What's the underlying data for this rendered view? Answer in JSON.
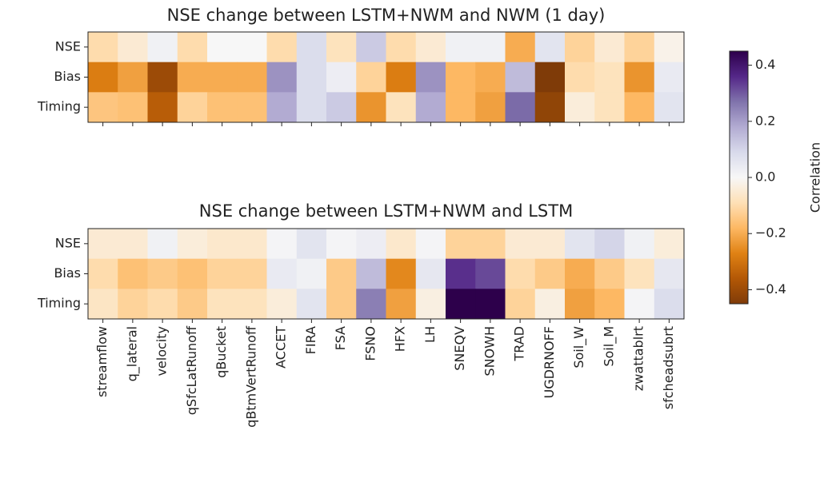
{
  "chart_data": [
    {
      "type": "heatmap",
      "title": "NSE change between LSTM+NWM and NWM (1 day)",
      "rows": [
        "NSE",
        "Bias",
        "Timing"
      ],
      "values": [
        [
          -0.1,
          -0.05,
          0.02,
          -0.1,
          0.0,
          0.0,
          -0.1,
          0.08,
          -0.08,
          0.12,
          -0.1,
          -0.05,
          0.02,
          0.02,
          -0.2,
          0.06,
          -0.12,
          -0.05,
          -0.12,
          -0.02
        ],
        [
          -0.28,
          -0.22,
          -0.4,
          -0.2,
          -0.2,
          -0.2,
          0.22,
          0.08,
          0.03,
          -0.12,
          -0.28,
          0.22,
          -0.18,
          -0.2,
          0.15,
          -0.45,
          -0.1,
          -0.08,
          -0.24,
          0.04
        ],
        [
          -0.15,
          -0.16,
          -0.35,
          -0.12,
          -0.16,
          -0.16,
          0.18,
          0.08,
          0.12,
          -0.24,
          -0.08,
          0.18,
          -0.18,
          -0.22,
          0.28,
          -0.42,
          -0.04,
          -0.08,
          -0.18,
          0.06
        ]
      ]
    },
    {
      "type": "heatmap",
      "title": "NSE change between LSTM+NWM and LSTM",
      "rows": [
        "NSE",
        "Bias",
        "Timing"
      ],
      "categories": [
        "streamflow",
        "q_lateral",
        "velocity",
        "qSfcLatRunoff",
        "qBucket",
        "qBtmVertRunoff",
        "ACCET",
        "FIRA",
        "FSA",
        "FSNO",
        "HFX",
        "LH",
        "SNEQV",
        "SNOWH",
        "TRAD",
        "UGDRNOFF",
        "Soil_W",
        "Soil_M",
        "zwattablrt",
        "sfcheadsubrt"
      ],
      "values": [
        [
          -0.05,
          -0.05,
          0.02,
          -0.04,
          -0.06,
          -0.06,
          0.01,
          0.06,
          0.01,
          0.03,
          -0.06,
          0.01,
          -0.12,
          -0.12,
          -0.05,
          -0.05,
          0.06,
          0.1,
          0.02,
          -0.04
        ],
        [
          -0.1,
          -0.16,
          -0.14,
          -0.16,
          -0.12,
          -0.12,
          0.04,
          0.02,
          -0.14,
          0.15,
          -0.26,
          0.05,
          0.35,
          0.32,
          -0.1,
          -0.14,
          -0.2,
          -0.14,
          -0.08,
          0.05
        ],
        [
          -0.07,
          -0.12,
          -0.1,
          -0.14,
          -0.08,
          -0.08,
          -0.04,
          0.06,
          -0.14,
          0.25,
          -0.22,
          -0.03,
          0.45,
          0.45,
          -0.12,
          -0.03,
          -0.22,
          -0.18,
          0.01,
          0.08
        ]
      ]
    }
  ],
  "colorbar": {
    "label": "Correlation",
    "lim": [
      -0.45,
      0.45
    ],
    "ticks": [
      {
        "value": -0.4,
        "label": "−0.4"
      },
      {
        "value": -0.2,
        "label": "−0.2"
      },
      {
        "value": 0,
        "label": "0.0"
      },
      0.2,
      0.4
    ],
    "colormap": [
      "#7f3b08",
      "#b35806",
      "#e08214",
      "#fdb863",
      "#fee0b6",
      "#f7f7f7",
      "#d8daeb",
      "#b2abd2",
      "#8073ac",
      "#542788",
      "#2d004b"
    ]
  }
}
